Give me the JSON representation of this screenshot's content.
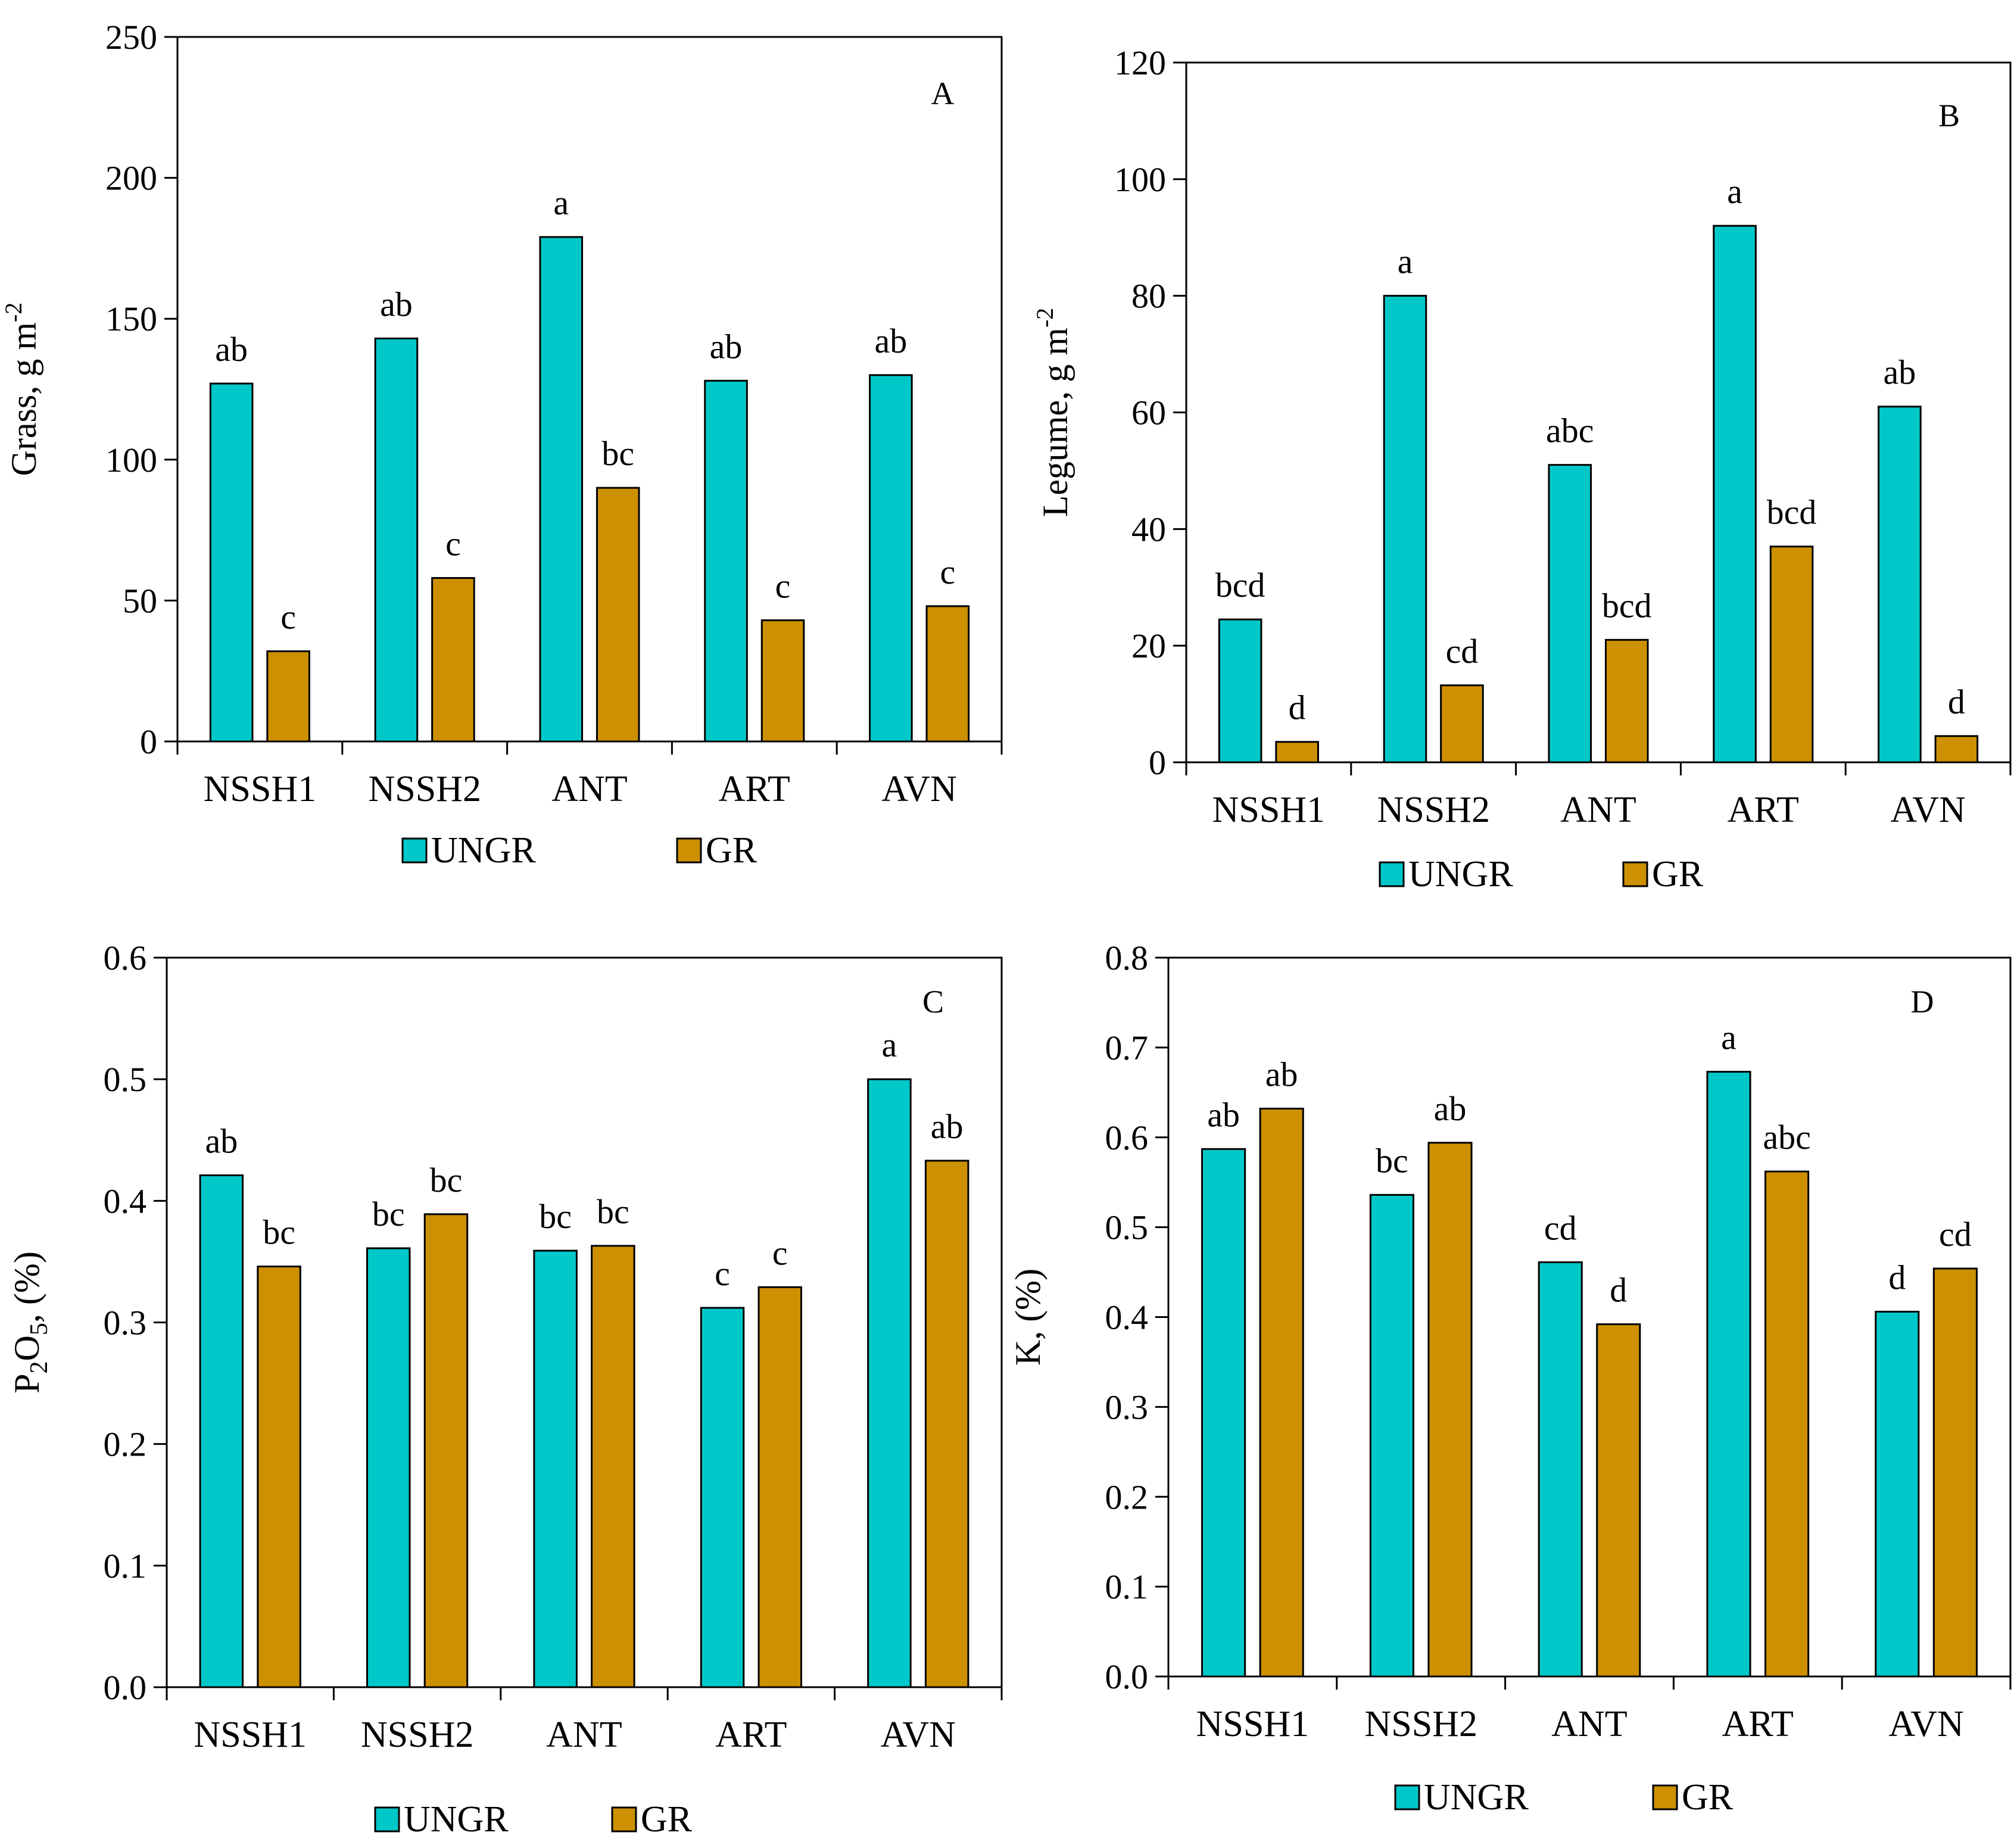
{
  "colors": {
    "ungrazed": "#00C8C8",
    "grazed": "#CC9000",
    "stroke": "#000000"
  },
  "chart_data": [
    {
      "type": "bar",
      "panel": "A",
      "ylabel": "Grass, g m",
      "ylabel_sup": "-2",
      "categories": [
        "NSSH1",
        "NSSH2",
        "ANT",
        "ART",
        "AVN"
      ],
      "ylim": [
        0,
        250
      ],
      "yticks": [
        "0",
        "50",
        "100",
        "150",
        "200",
        "250"
      ],
      "ytick_values": [
        0,
        50,
        100,
        150,
        200,
        250
      ],
      "series": [
        {
          "name": "UNGR",
          "values": [
            127,
            143,
            179,
            128,
            130
          ],
          "labels": [
            "ab",
            "ab",
            "a",
            "ab",
            "ab"
          ]
        },
        {
          "name": "GR",
          "values": [
            32,
            58,
            90,
            43,
            48
          ],
          "labels": [
            "c",
            "c",
            "bc",
            "c",
            "c"
          ]
        }
      ],
      "legend": "bottom"
    },
    {
      "type": "bar",
      "panel": "B",
      "ylabel": "Legume, g m",
      "ylabel_sup": "-2",
      "categories": [
        "NSSH1",
        "NSSH2",
        "ANT",
        "ART",
        "AVN"
      ],
      "ylim": [
        0,
        120
      ],
      "yticks": [
        "0",
        "20",
        "40",
        "60",
        "80",
        "100",
        "120"
      ],
      "ytick_values": [
        0,
        20,
        40,
        60,
        80,
        100,
        120
      ],
      "series": [
        {
          "name": "UNGR",
          "values": [
            24.5,
            80,
            51,
            92,
            61
          ],
          "labels": [
            "bcd",
            "a",
            "abc",
            "a",
            "ab"
          ]
        },
        {
          "name": "GR",
          "values": [
            3.5,
            13.2,
            21,
            37,
            4.5
          ],
          "labels": [
            "d",
            "cd",
            "bcd",
            "bcd",
            "d"
          ]
        }
      ],
      "legend": "bottom"
    },
    {
      "type": "bar",
      "panel": "C",
      "ylabel": "P",
      "ylabel_sub1": "2",
      "ylabel_mid": "O",
      "ylabel_sub2": "5",
      "ylabel_tail": ",  (%)",
      "categories": [
        "NSSH1",
        "NSSH2",
        "ANT",
        "ART",
        "AVN"
      ],
      "ylim": [
        0,
        0.6
      ],
      "yticks": [
        "0.0",
        "0.1",
        "0.2",
        "0.3",
        "0.4",
        "0.5",
        "0.6"
      ],
      "ytick_values": [
        0,
        0.1,
        0.2,
        0.3,
        0.4,
        0.5,
        0.6
      ],
      "series": [
        {
          "name": "UNGR",
          "values": [
            0.421,
            0.361,
            0.359,
            0.312,
            0.5
          ],
          "labels": [
            "ab",
            "bc",
            "bc",
            "c",
            "a"
          ]
        },
        {
          "name": "GR",
          "values": [
            0.346,
            0.389,
            0.363,
            0.329,
            0.433
          ],
          "labels": [
            "bc",
            "bc",
            "bc",
            "c",
            "ab"
          ]
        }
      ],
      "legend": "bottom"
    },
    {
      "type": "bar",
      "panel": "D",
      "ylabel": "K,  (%)",
      "categories": [
        "NSSH1",
        "NSSH2",
        "ANT",
        "ART",
        "AVN"
      ],
      "ylim": [
        0,
        0.8
      ],
      "yticks": [
        "0.0",
        "0.1",
        "0.2",
        "0.3",
        "0.4",
        "0.5",
        "0.6",
        "0.7",
        "0.8"
      ],
      "ytick_values": [
        0,
        0.1,
        0.2,
        0.3,
        0.4,
        0.5,
        0.6,
        0.7,
        0.8
      ],
      "series": [
        {
          "name": "UNGR",
          "values": [
            0.587,
            0.536,
            0.461,
            0.673,
            0.406
          ],
          "labels": [
            "ab",
            "bc",
            "cd",
            "a",
            "d"
          ]
        },
        {
          "name": "GR",
          "values": [
            0.632,
            0.594,
            0.392,
            0.562,
            0.454
          ],
          "labels": [
            "ab",
            "ab",
            "d",
            "abc",
            "cd"
          ]
        }
      ],
      "legend": "bottom"
    }
  ]
}
